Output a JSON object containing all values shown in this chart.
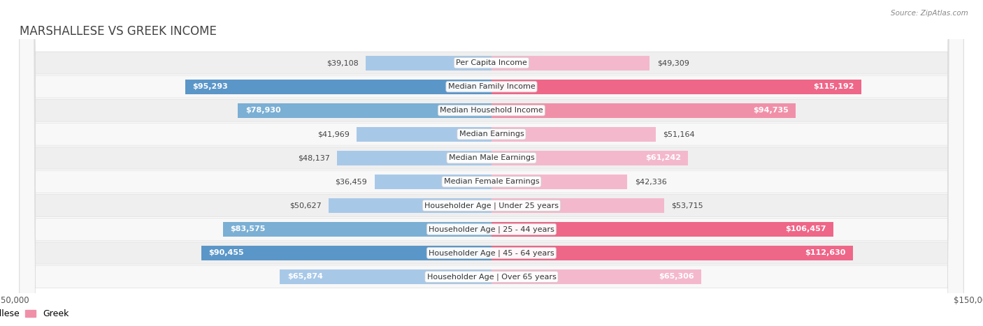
{
  "title": "MARSHALLESE VS GREEK INCOME",
  "source": "Source: ZipAtlas.com",
  "categories": [
    "Per Capita Income",
    "Median Family Income",
    "Median Household Income",
    "Median Earnings",
    "Median Male Earnings",
    "Median Female Earnings",
    "Householder Age | Under 25 years",
    "Householder Age | 25 - 44 years",
    "Householder Age | 45 - 64 years",
    "Householder Age | Over 65 years"
  ],
  "marshallese": [
    39108,
    95293,
    78930,
    41969,
    48137,
    36459,
    50627,
    83575,
    90455,
    65874
  ],
  "greek": [
    49309,
    115192,
    94735,
    51164,
    61242,
    42336,
    53715,
    106457,
    112630,
    65306
  ],
  "marshallese_labels": [
    "$39,108",
    "$95,293",
    "$78,930",
    "$41,969",
    "$48,137",
    "$36,459",
    "$50,627",
    "$83,575",
    "$90,455",
    "$65,874"
  ],
  "greek_labels": [
    "$49,309",
    "$115,192",
    "$94,735",
    "$51,164",
    "$61,242",
    "$42,336",
    "$53,715",
    "$106,457",
    "$112,630",
    "$65,306"
  ],
  "max_val": 150000,
  "blue_light": "#A8C8E8",
  "blue_mid": "#7BAFD4",
  "blue_dark": "#5B96C8",
  "pink_light": "#F4B8CC",
  "pink_mid": "#F090A8",
  "pink_dark": "#EE6688",
  "bg_color": "#ffffff",
  "row_even_bg": "#efefef",
  "row_odd_bg": "#f8f8f8",
  "title_color": "#444444",
  "title_fontsize": 12,
  "label_fontsize": 8,
  "cat_fontsize": 8,
  "source_fontsize": 7.5,
  "inside_label_threshold": 55000
}
